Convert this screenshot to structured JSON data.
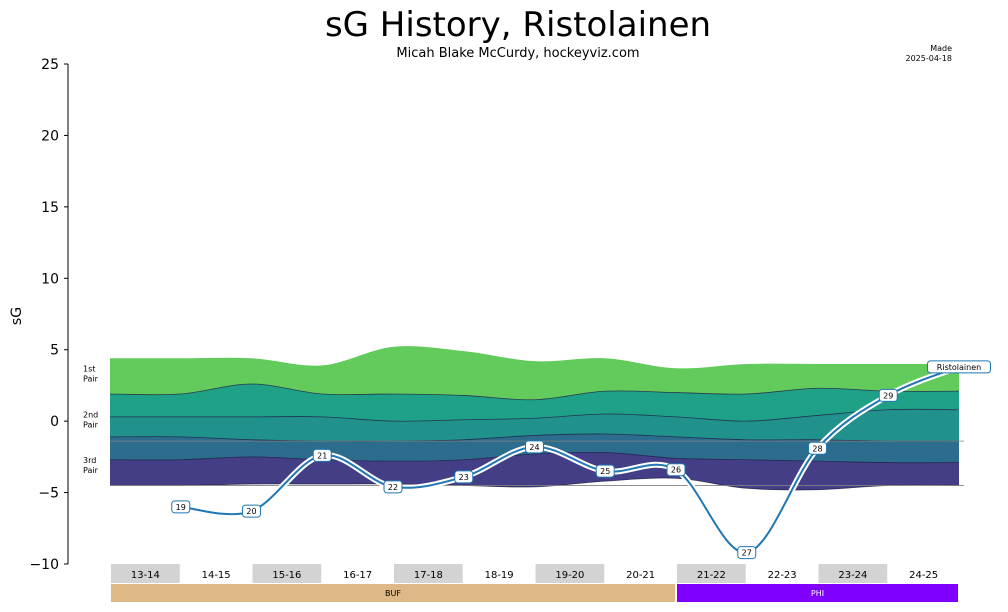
{
  "title": "sG History, Ristolainen",
  "subtitle": "Micah Blake McCurdy, hockeyviz.com",
  "made_label": "Made",
  "made_date": "2025-04-18",
  "chart_data": {
    "type": "line",
    "ylabel": "sG",
    "ylim": [
      -10,
      25
    ],
    "yticks": [
      -10,
      -5,
      0,
      5,
      10,
      15,
      20,
      25
    ],
    "tier_labels": [
      {
        "line1": "1st",
        "line2": "Pair",
        "y": 3.4
      },
      {
        "line1": "2nd",
        "line2": "Pair",
        "y": 0.2
      },
      {
        "line1": "3rd",
        "line2": "Pair",
        "y": -3.0
      }
    ],
    "seasons": [
      "13-14",
      "14-15",
      "15-16",
      "16-17",
      "17-18",
      "18-19",
      "19-20",
      "20-21",
      "21-22",
      "22-23",
      "23-24",
      "24-25"
    ],
    "season_shaded": [
      true,
      false,
      true,
      false,
      true,
      false,
      true,
      false,
      true,
      false,
      true,
      false
    ],
    "teams": [
      {
        "name": "BUF",
        "start": 0,
        "end": 8,
        "color": "#deb887",
        "text_color": "#000000"
      },
      {
        "name": "PHI",
        "start": 8,
        "end": 12,
        "color": "#8000ff",
        "text_color": "#ffffff"
      }
    ],
    "band_x": [
      0,
      1,
      2,
      3,
      4,
      5,
      6,
      7,
      8,
      9,
      10,
      11,
      12
    ],
    "band_boundaries": [
      [
        -4.5,
        -4.5,
        -4.4,
        -4.4,
        -4.4,
        -4.5,
        -4.6,
        -4.2,
        -4.0,
        -4.7,
        -4.8,
        -4.5,
        -4.5
      ],
      [
        -2.7,
        -2.7,
        -2.5,
        -2.7,
        -2.8,
        -2.7,
        -2.3,
        -2.2,
        -2.6,
        -2.7,
        -2.8,
        -2.9,
        -2.9
      ],
      [
        -1.1,
        -1.1,
        -1.3,
        -1.4,
        -1.4,
        -1.3,
        -1.0,
        -0.9,
        -1.1,
        -1.3,
        -1.3,
        -1.4,
        -1.4
      ],
      [
        0.3,
        0.3,
        0.3,
        0.3,
        0.0,
        0.1,
        0.2,
        0.5,
        0.3,
        0.0,
        0.4,
        0.8,
        0.8
      ],
      [
        1.9,
        1.9,
        2.6,
        1.9,
        1.9,
        1.8,
        1.5,
        2.1,
        2.0,
        1.9,
        2.3,
        2.1,
        2.1
      ],
      [
        4.4,
        4.4,
        4.4,
        3.9,
        5.2,
        4.9,
        4.2,
        4.4,
        3.7,
        4.0,
        4.0,
        4.0,
        4.0
      ]
    ],
    "band_colors": [
      "#433e85",
      "#2c6d8e",
      "#21918c",
      "#1fa187",
      "#62cb5c"
    ],
    "reference_lines": [
      -1.4,
      -4.5
    ],
    "series": [
      {
        "name": "Ristolainen",
        "color": "#1f77b4",
        "x": [
          1,
          2,
          3,
          4,
          5,
          6,
          7,
          8,
          9,
          10,
          11,
          12
        ],
        "y": [
          -6.0,
          -6.3,
          -2.4,
          -4.6,
          -3.9,
          -1.8,
          -3.5,
          -3.4,
          -9.2,
          -1.9,
          1.8,
          3.8
        ],
        "labels": [
          "19",
          "20",
          "21",
          "22",
          "23",
          "24",
          "25",
          "26",
          "27",
          "28",
          "29",
          "Ristolainen"
        ]
      }
    ]
  }
}
